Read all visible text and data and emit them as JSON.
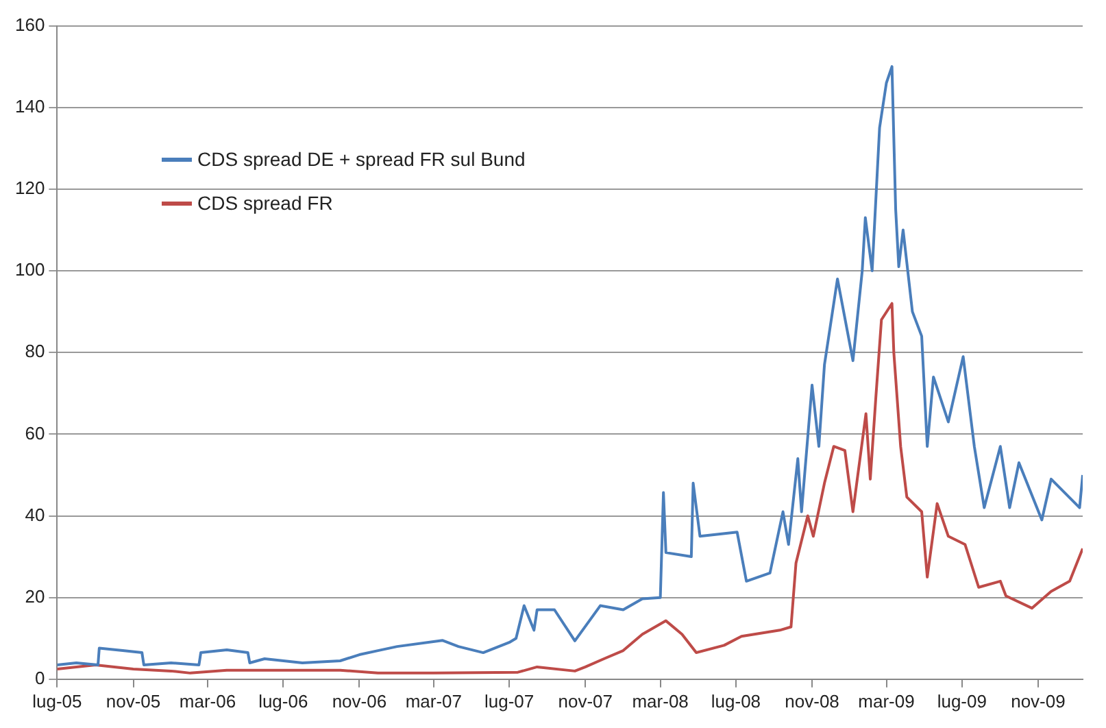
{
  "chart_data": {
    "type": "line",
    "xlim": [
      "2005-07-01",
      "2010-01-12"
    ],
    "ylim": [
      0,
      160
    ],
    "yticks": [
      0,
      20,
      40,
      60,
      80,
      100,
      120,
      140,
      160
    ],
    "xticks": [
      {
        "value": "2005-07-01",
        "label": "lug-05"
      },
      {
        "value": "2005-11-01",
        "label": "nov-05"
      },
      {
        "value": "2006-03-01",
        "label": "mar-06"
      },
      {
        "value": "2006-07-01",
        "label": "lug-06"
      },
      {
        "value": "2006-11-01",
        "label": "nov-06"
      },
      {
        "value": "2007-03-01",
        "label": "mar-07"
      },
      {
        "value": "2007-07-01",
        "label": "lug-07"
      },
      {
        "value": "2007-11-01",
        "label": "nov-07"
      },
      {
        "value": "2008-03-01",
        "label": "mar-08"
      },
      {
        "value": "2008-07-01",
        "label": "lug-08"
      },
      {
        "value": "2008-11-01",
        "label": "nov-08"
      },
      {
        "value": "2009-03-01",
        "label": "mar-09"
      },
      {
        "value": "2009-07-01",
        "label": "lug-09"
      },
      {
        "value": "2009-11-01",
        "label": "nov-09"
      }
    ],
    "grid": "y",
    "legend": "top left",
    "marker": "none",
    "line_style": "solid",
    "series": [
      {
        "name": "CDS spread DE + spread FR sul Bund",
        "color": "#4a7ebb",
        "x": [
          "2005-07-01",
          "2005-08-01",
          "2005-09-05",
          "2005-09-07",
          "2005-10-15",
          "2005-11-15",
          "2005-11-18",
          "2006-01-01",
          "2006-02-15",
          "2006-02-18",
          "2006-04-01",
          "2006-05-05",
          "2006-05-08",
          "2006-06-01",
          "2006-08-01",
          "2006-10-01",
          "2006-11-01",
          "2006-12-01",
          "2007-01-01",
          "2007-03-15",
          "2007-04-10",
          "2007-05-20",
          "2007-07-01",
          "2007-07-12",
          "2007-07-25",
          "2007-08-10",
          "2007-08-15",
          "2007-09-12",
          "2007-10-15",
          "2007-11-25",
          "2008-01-01",
          "2008-02-01",
          "2008-03-01",
          "2008-03-06",
          "2008-03-10",
          "2008-04-20",
          "2008-04-23",
          "2008-05-04",
          "2008-07-03",
          "2008-07-18",
          "2008-08-25",
          "2008-09-15",
          "2008-09-24",
          "2008-10-09",
          "2008-10-15",
          "2008-11-01",
          "2008-11-12",
          "2008-11-21",
          "2008-12-12",
          "2009-01-06",
          "2009-01-21",
          "2009-01-26",
          "2009-02-06",
          "2009-02-18",
          "2009-03-01",
          "2009-03-10",
          "2009-03-16",
          "2009-03-21",
          "2009-03-28",
          "2009-04-12",
          "2009-04-27",
          "2009-05-06",
          "2009-05-16",
          "2009-06-09",
          "2009-07-03",
          "2009-07-21",
          "2009-08-06",
          "2009-09-01",
          "2009-09-16",
          "2009-10-01",
          "2009-11-07",
          "2009-11-22",
          "2010-01-07",
          "2010-01-12"
        ],
        "values": [
          3.5,
          4,
          3.5,
          7.6,
          7,
          6.5,
          3.5,
          4,
          3.5,
          6.5,
          7.2,
          6.5,
          4,
          5,
          4,
          4.5,
          6,
          7,
          8,
          9.5,
          8,
          6.5,
          9,
          10,
          18,
          12,
          17,
          17,
          9.4,
          18,
          17,
          19.7,
          20,
          45.7,
          31,
          30,
          48,
          35,
          36,
          24,
          26,
          41,
          33,
          54,
          41,
          72,
          57,
          77,
          98,
          78,
          100,
          113,
          100,
          135,
          146,
          150,
          115,
          101,
          110,
          90,
          84,
          57,
          74,
          63,
          79,
          57,
          42,
          57,
          42,
          53,
          39,
          49,
          42,
          50
        ]
      },
      {
        "name": "CDS spread FR",
        "color": "#be4b48",
        "x": [
          "2005-07-01",
          "2005-09-01",
          "2005-11-01",
          "2006-01-01",
          "2006-02-01",
          "2006-04-01",
          "2006-10-01",
          "2006-12-01",
          "2007-03-01",
          "2007-07-15",
          "2007-08-15",
          "2007-10-15",
          "2007-11-01",
          "2007-12-01",
          "2008-01-01",
          "2008-02-01",
          "2008-03-10",
          "2008-04-05",
          "2008-04-28",
          "2008-06-12",
          "2008-07-10",
          "2008-09-10",
          "2008-09-28",
          "2008-10-06",
          "2008-10-25",
          "2008-11-03",
          "2008-11-21",
          "2008-12-06",
          "2008-12-24",
          "2009-01-06",
          "2009-01-27",
          "2009-02-03",
          "2009-02-12",
          "2009-02-21",
          "2009-03-10",
          "2009-03-13",
          "2009-03-24",
          "2009-04-03",
          "2009-04-27",
          "2009-05-06",
          "2009-05-22",
          "2009-06-09",
          "2009-07-06",
          "2009-07-28",
          "2009-09-01",
          "2009-09-10",
          "2009-10-22",
          "2009-11-22",
          "2009-12-22",
          "2010-01-12"
        ],
        "values": [
          2.5,
          3.5,
          2.5,
          2,
          1.5,
          2.2,
          2.2,
          1.5,
          1.5,
          1.7,
          3,
          2,
          3,
          5,
          7,
          11,
          14.3,
          11,
          6.5,
          8.3,
          10.5,
          12,
          12.8,
          28.4,
          40,
          35,
          48,
          57,
          56,
          41,
          65,
          49,
          69,
          88,
          92,
          80,
          57,
          44.6,
          41,
          25,
          43,
          35,
          33,
          22.5,
          24,
          20.4,
          17.4,
          21.5,
          24,
          32
        ]
      }
    ]
  }
}
